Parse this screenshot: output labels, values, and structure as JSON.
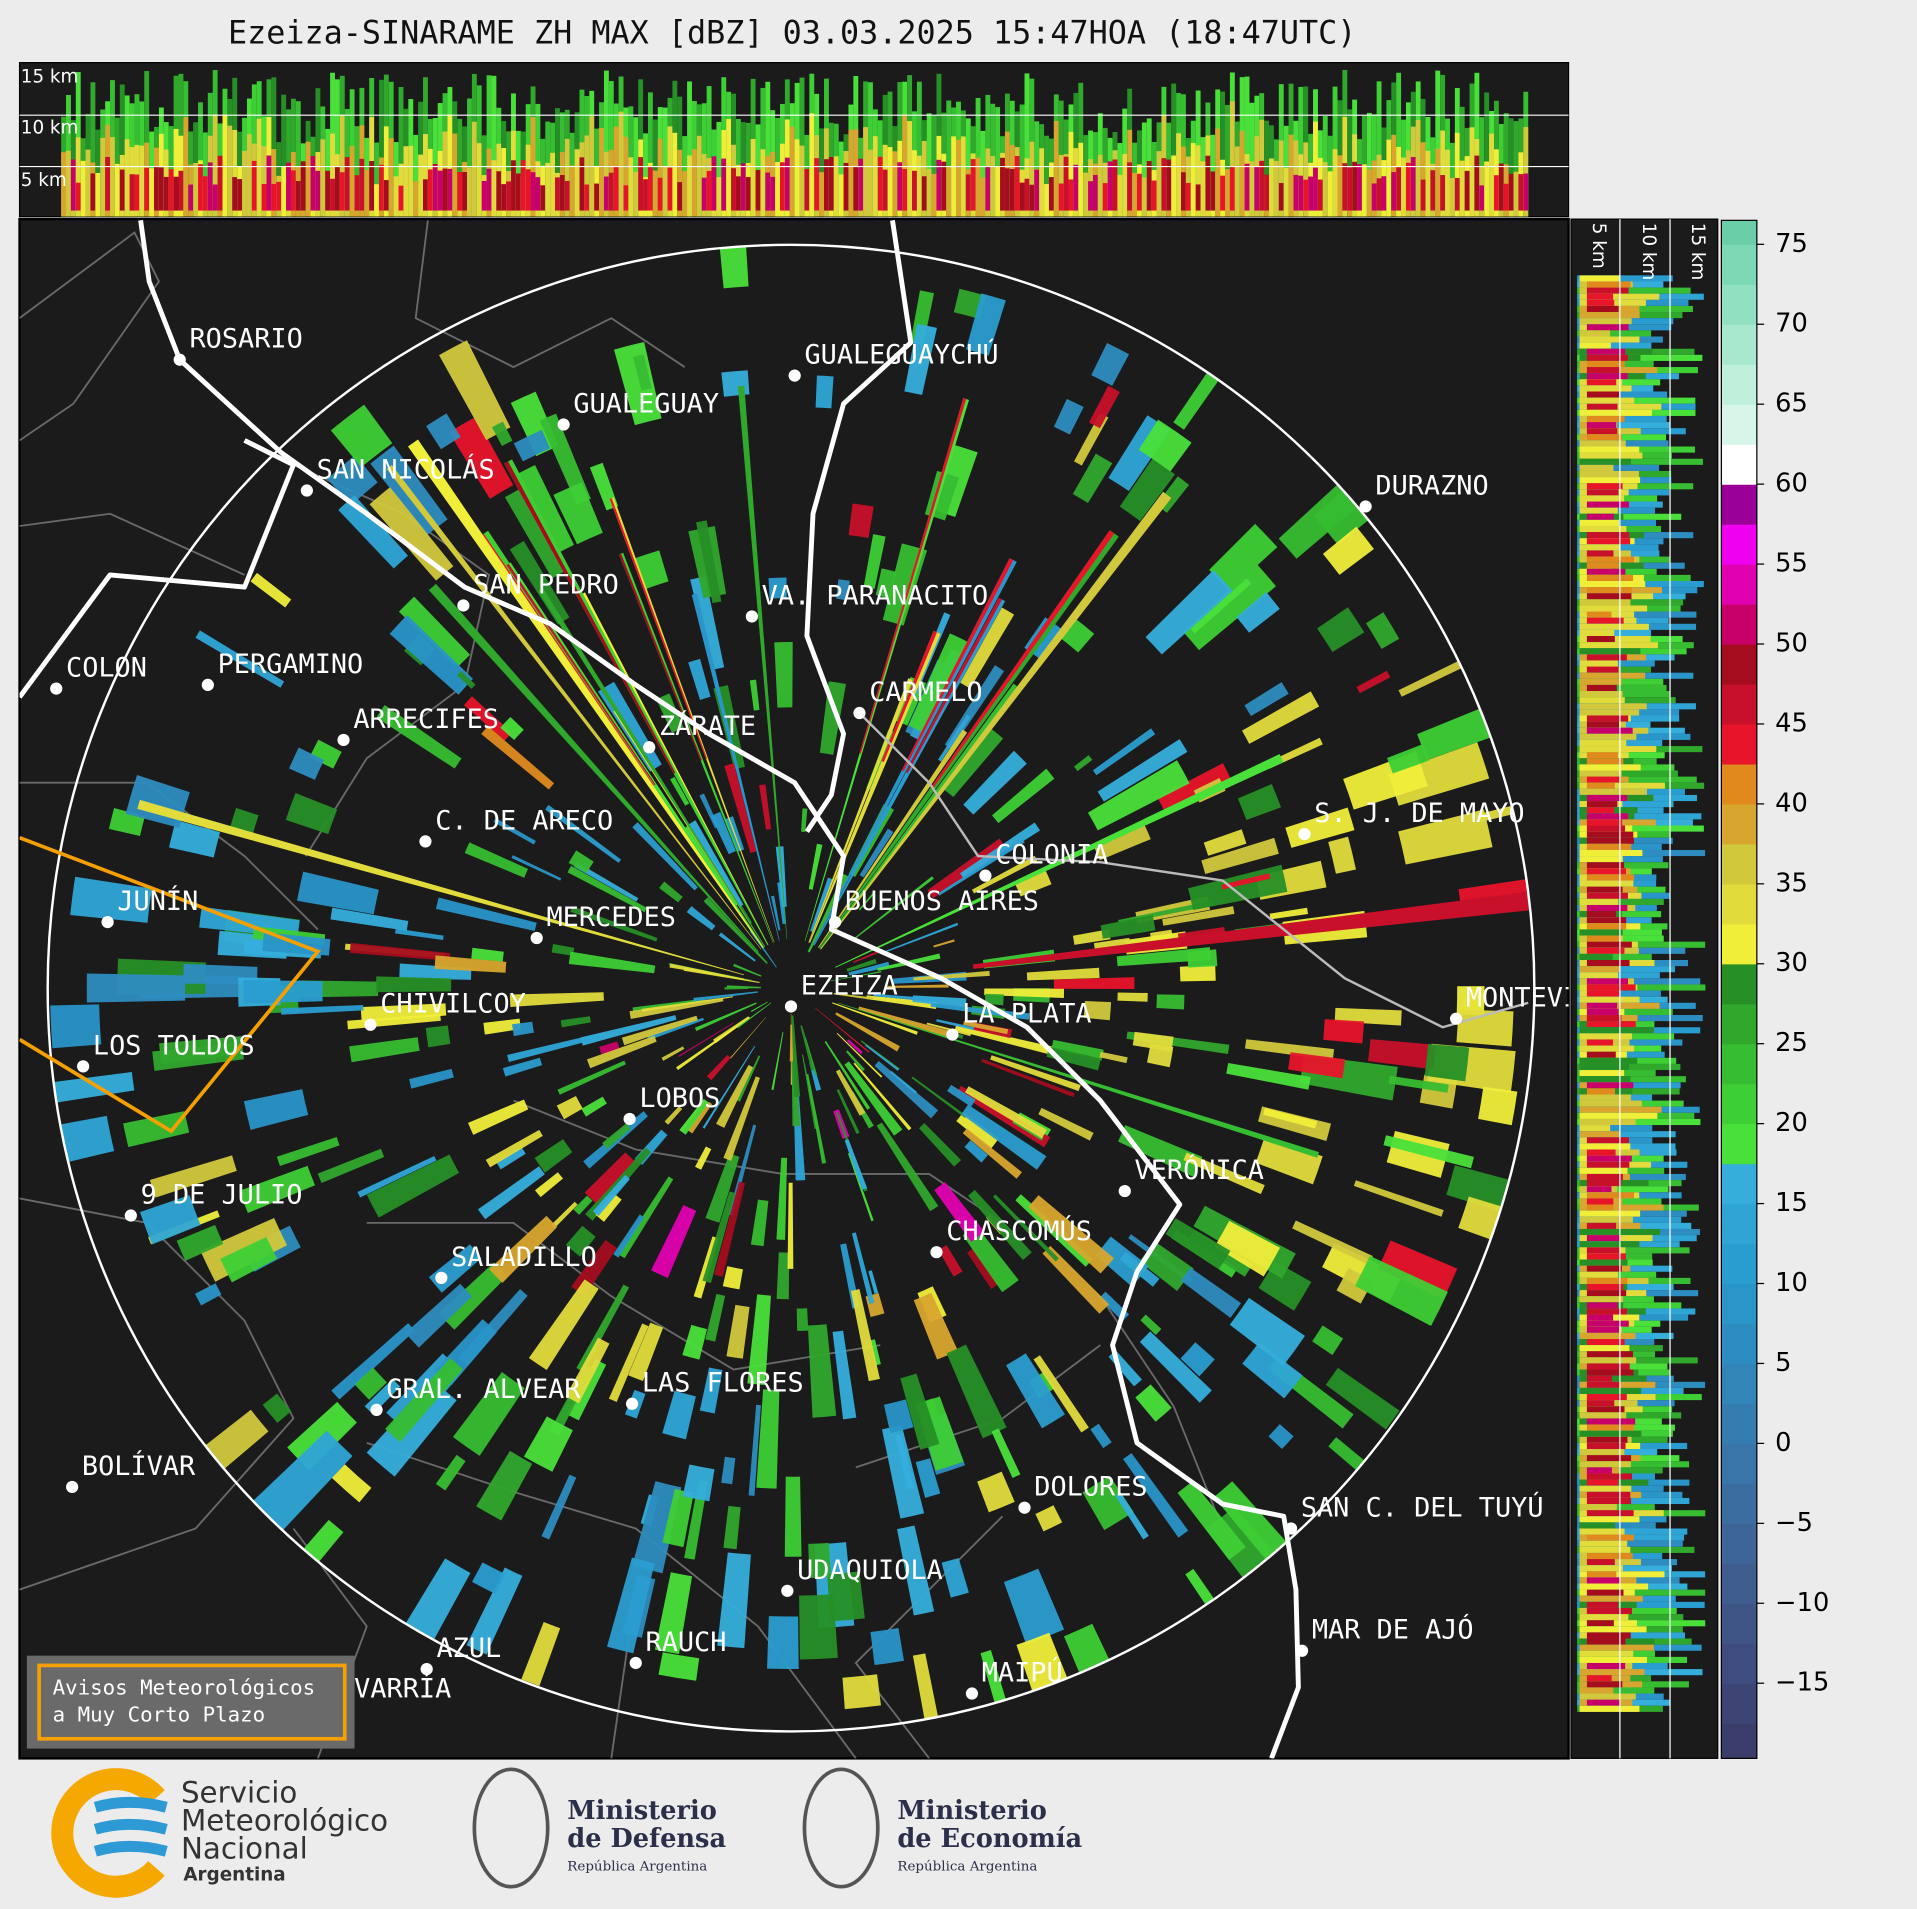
{
  "title": "Ezeiza-SINARAME ZH MAX [dBZ] 03.03.2025 15:47HOA (18:47UTC)",
  "height_labels": [
    "15 km",
    "10 km",
    "5 km"
  ],
  "cities": [
    "ROSARIO",
    "GUALEGUAYCHÚ",
    "GUALEGUAY",
    "SAN NICOLÁS",
    "DURAZNO",
    "SAN PEDRO",
    "VA. PARANACITO",
    "COLON",
    "PERGAMINO",
    "CARMELO",
    "ARRECIFES",
    "ZÁRATE",
    "C. DE ARECO",
    "S. J. DE MAYO",
    "COLONIA",
    "BUENOS AIRES",
    "JUNÍN",
    "MERCEDES",
    "EZEIZA",
    "CHIVILCOY",
    "MONTEVIDEO",
    "LA PLATA",
    "LOS TOLDOS",
    "LOBOS",
    "VERÓNICA",
    "9 DE JULIO",
    "CHASCOMÚS",
    "SALADILLO",
    "GRAL. ALVEAR",
    "LAS FLORES",
    "BOLÍVAR",
    "DOLORES",
    "SAN C. DEL TUYÚ",
    "UDAQUIOLA",
    "MAR DE AJÓ",
    "RAUCH",
    "AZUL",
    "OLAVARRÍA",
    "MAIPÚ"
  ],
  "colorbar": {
    "lim": [
      -19.7,
      76.5
    ],
    "ticks": [
      75,
      70,
      65,
      60,
      55,
      50,
      45,
      40,
      35,
      30,
      25,
      20,
      15,
      10,
      5,
      0,
      {
        "value": -5,
        "label": "−5"
      },
      {
        "value": -10,
        "label": "−10"
      },
      {
        "value": -15,
        "label": "−15"
      }
    ],
    "colors": [
      "#3b3d6b",
      "#3d4574",
      "#3e4d7d",
      "#3f5586",
      "#3f5d8f",
      "#3e6598",
      "#3c6da0",
      "#3975a8",
      "#357db0",
      "#3185b8",
      "#2d8dc0",
      "#2995c8",
      "#2a9dd0",
      "#2fa5d6",
      "#35aedc",
      "#4ae03a",
      "#3ecf35",
      "#37bd31",
      "#30a82c",
      "#268f26",
      "#f1ee3a",
      "#e1dc3c",
      "#d2c83c",
      "#d8a62e",
      "#e08a1e",
      "#e8142a",
      "#c8102a",
      "#a50d1e",
      "#c8006a",
      "#e000b0",
      "#f000f0",
      "#9a0098",
      "#ffffff",
      "#d8f5ea",
      "#bff0dc",
      "#a8e8cf",
      "#92e0c2",
      "#7dd8b5",
      "#6acfa8"
    ]
  },
  "warning": [
    "Avisos Meteorológicos",
    "a Muy Corto Plazo"
  ],
  "logos": {
    "smn": [
      "Servicio",
      "Meteorológico",
      "Nacional",
      "Argentina"
    ],
    "defensa": [
      "Ministerio",
      "de Defensa",
      "República Argentina"
    ],
    "economia": [
      "Ministerio",
      "de Economía",
      "República Argentina"
    ]
  }
}
